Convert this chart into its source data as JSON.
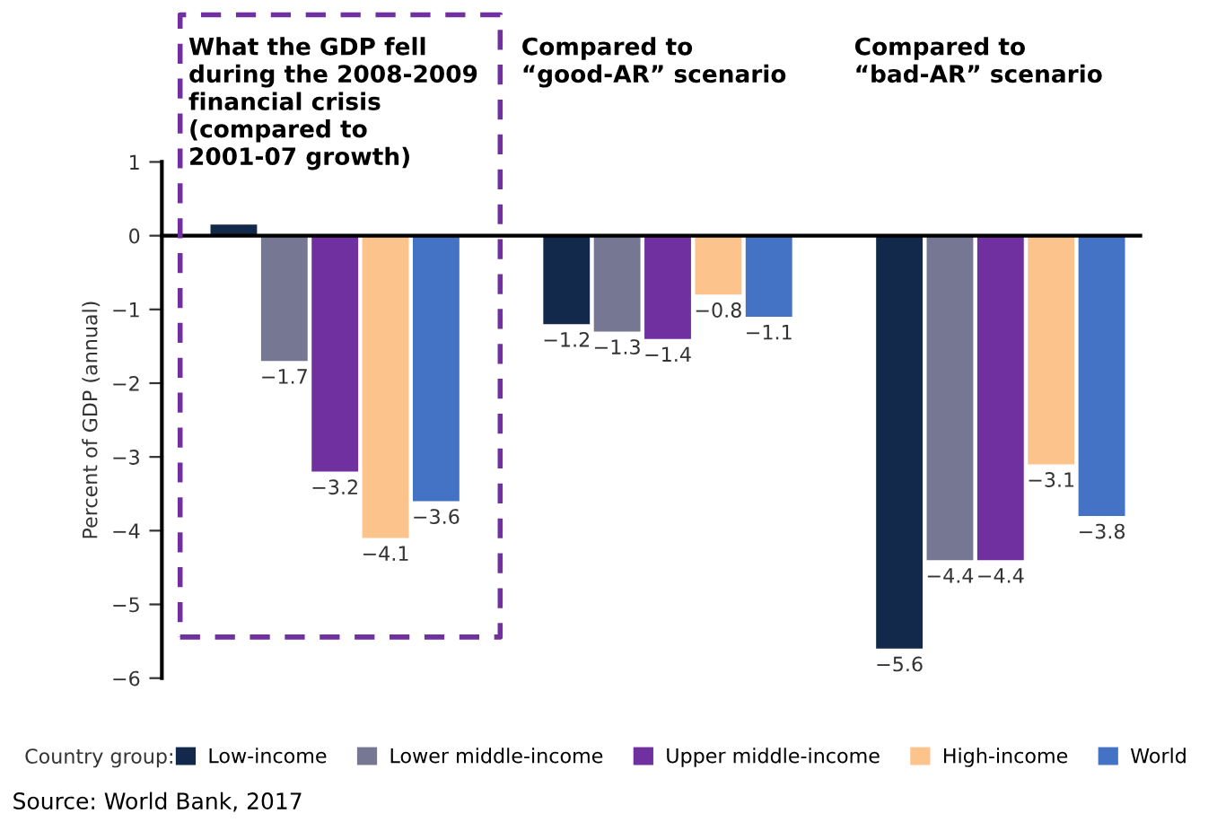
{
  "chart_data": {
    "type": "bar",
    "categories": [
      "What the GDP fell during the 2008-2009 financial crisis (compared to 2001-07 growth)",
      "Compared to “good-AR” scenario",
      "Compared to “bad-AR” scenario"
    ],
    "ylabel": "Percent of GDP (annual)",
    "legend_title": "Country group:",
    "series": [
      {
        "name": "Low-income",
        "color": "#13294b",
        "values": [
          0.15,
          -1.2,
          -5.6
        ],
        "value_labels": [
          null,
          "−1.2",
          "−5.6"
        ]
      },
      {
        "name": "Lower middle-income",
        "color": "#767793",
        "values": [
          -1.7,
          -1.3,
          -4.4
        ],
        "value_labels": [
          "−1.7",
          "−1.3",
          "−4.4"
        ]
      },
      {
        "name": "Upper middle-income",
        "color": "#7030a0",
        "values": [
          -3.2,
          -1.4,
          -4.4
        ],
        "value_labels": [
          "−3.2",
          "−1.4",
          "−4.4"
        ]
      },
      {
        "name": "High-income",
        "color": "#fcc48c",
        "values": [
          -4.1,
          -0.8,
          -3.1
        ],
        "value_labels": [
          "−4.1",
          "−0.8",
          "−3.1"
        ]
      },
      {
        "name": "World",
        "color": "#4472c4",
        "values": [
          -3.6,
          -1.1,
          -3.8
        ],
        "value_labels": [
          "−3.6",
          "−1.1",
          "−3.8"
        ]
      }
    ],
    "ylim": [
      -6,
      1
    ],
    "yticks": [
      1,
      0,
      {
        "value": -1,
        "label": "−1"
      },
      {
        "value": -2,
        "label": "−2"
      },
      {
        "value": -3,
        "label": "−3"
      },
      {
        "value": -4,
        "label": "−4"
      },
      {
        "value": -5,
        "label": "−5"
      },
      {
        "value": -6,
        "label": "−6"
      }
    ],
    "legend": "bottom",
    "annotations": [
      "Source: World Bank, 2017"
    ]
  }
}
